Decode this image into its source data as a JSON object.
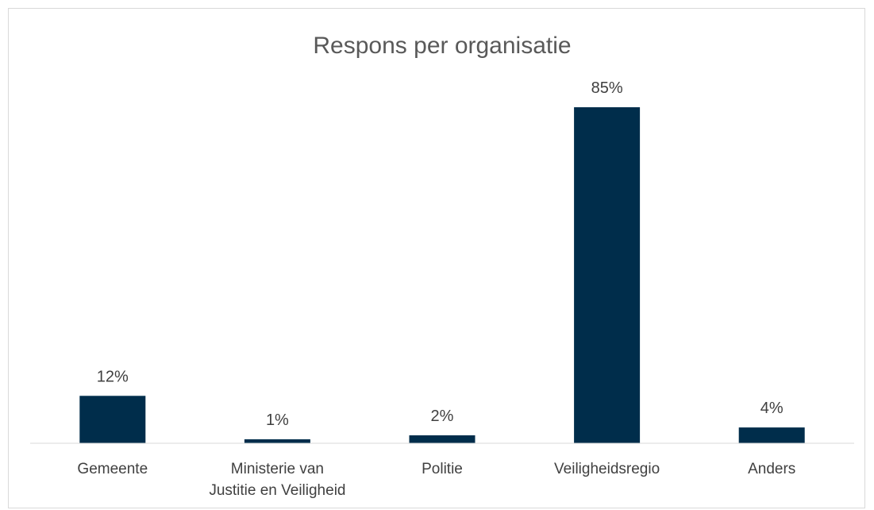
{
  "chart_data": {
    "type": "bar",
    "title": "Respons per organisatie",
    "categories": [
      [
        "Gemeente"
      ],
      [
        "Ministerie van",
        "Justitie en Veiligheid"
      ],
      [
        "Politie"
      ],
      [
        "Veiligheidsregio"
      ],
      [
        "Anders"
      ]
    ],
    "values": [
      12,
      1,
      2,
      85,
      4
    ],
    "value_labels": [
      "12%",
      "1%",
      "2%",
      "85%",
      "4%"
    ],
    "unit": "%",
    "ylim": [
      0,
      85
    ],
    "grid": false,
    "legend": "none",
    "colors": {
      "bar": "#002D4B",
      "axis": "#d9d9d9"
    }
  }
}
